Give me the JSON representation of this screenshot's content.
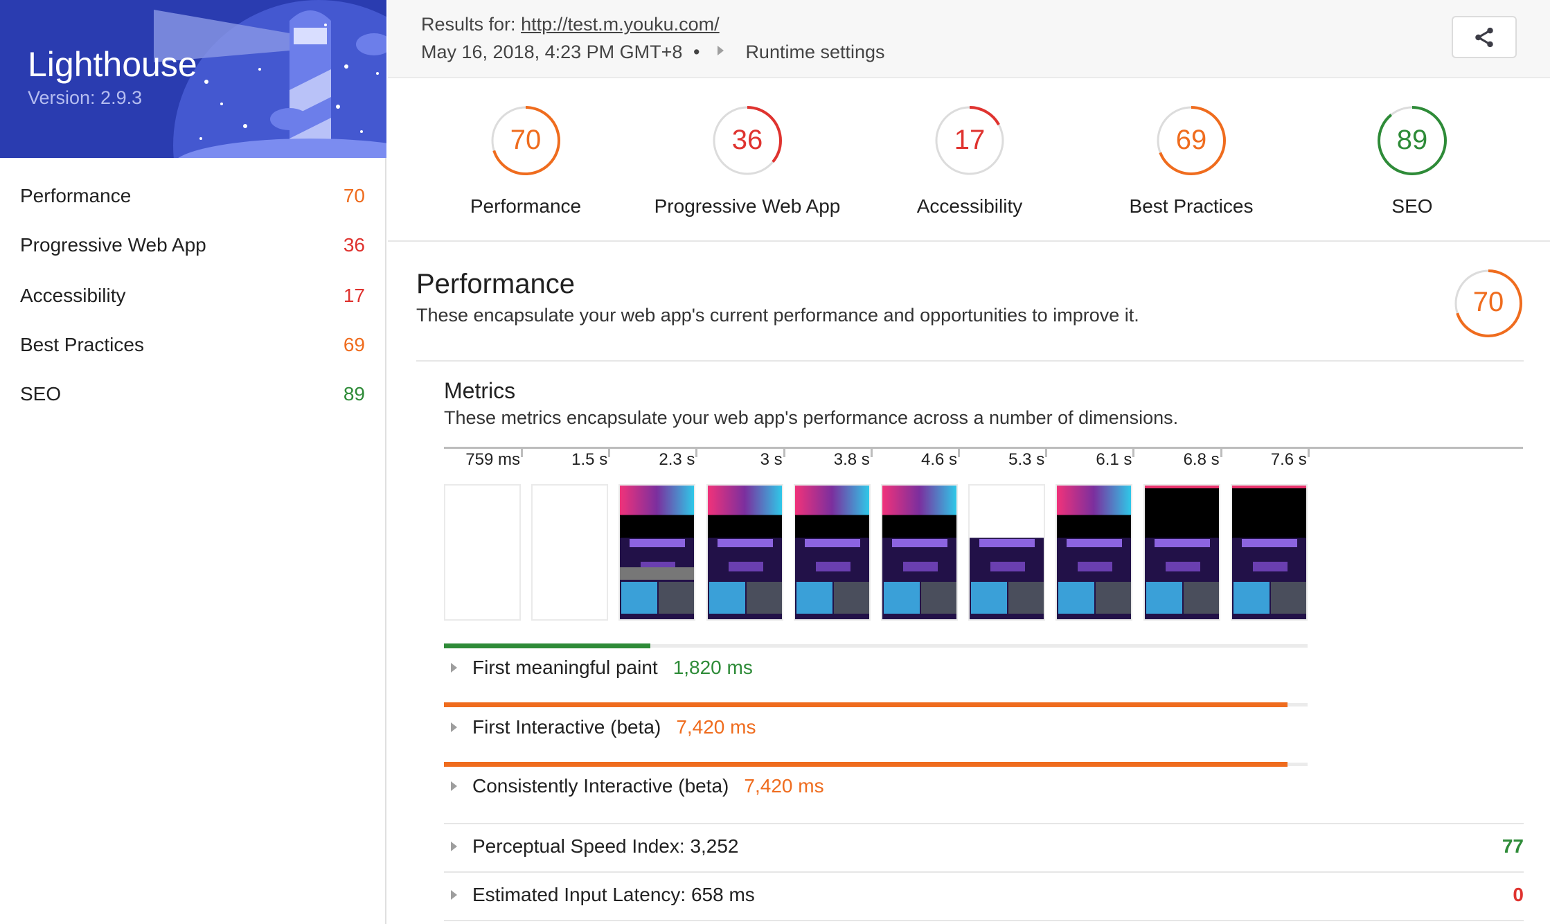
{
  "colors": {
    "pass": "#2e8b38",
    "average": "#ef6c1e",
    "fail": "#df332f",
    "track": "#dcdcdc"
  },
  "sidebar": {
    "title": "Lighthouse",
    "version": "Version: 2.9.3",
    "items": [
      {
        "label": "Performance",
        "score": "70",
        "status": "average"
      },
      {
        "label": "Progressive Web App",
        "score": "36",
        "status": "fail"
      },
      {
        "label": "Accessibility",
        "score": "17",
        "status": "fail"
      },
      {
        "label": "Best Practices",
        "score": "69",
        "status": "average"
      },
      {
        "label": "SEO",
        "score": "89",
        "status": "pass"
      }
    ]
  },
  "header": {
    "results_for": "Results for:",
    "url": "http://test.m.youku.com/",
    "timestamp": "May 16, 2018, 4:23 PM GMT+8",
    "bullet": "•",
    "runtime_settings": "Runtime settings",
    "share_icon": "share-icon"
  },
  "gauges": [
    {
      "label": "Performance",
      "score": 70,
      "status": "average"
    },
    {
      "label": "Progressive Web App",
      "score": 36,
      "status": "fail"
    },
    {
      "label": "Accessibility",
      "score": 17,
      "status": "fail"
    },
    {
      "label": "Best Practices",
      "score": 69,
      "status": "average"
    },
    {
      "label": "SEO",
      "score": 89,
      "status": "pass"
    }
  ],
  "performance": {
    "title": "Performance",
    "description": "These encapsulate your web app's current performance and opportunities to improve it.",
    "score": 70,
    "status": "average",
    "metrics": {
      "title": "Metrics",
      "description": "These metrics encapsulate your web app's performance across a number of dimensions.",
      "filmstrip": [
        "759 ms",
        "1.5 s",
        "2.3 s",
        "3 s",
        "3.8 s",
        "4.6 s",
        "5.3 s",
        "6.1 s",
        "6.8 s",
        "7.6 s"
      ],
      "timed": [
        {
          "label": "First meaningful paint",
          "value": "1,820 ms",
          "status": "pass",
          "fraction": 0.239
        },
        {
          "label": "First Interactive (beta)",
          "value": "7,420 ms",
          "status": "average",
          "fraction": 0.977
        },
        {
          "label": "Consistently Interactive (beta)",
          "value": "7,420 ms",
          "status": "average",
          "fraction": 0.977
        }
      ],
      "scored": [
        {
          "label": "Perceptual Speed Index: 3,252",
          "score": "77",
          "status": "pass"
        },
        {
          "label": "Estimated Input Latency: 658 ms",
          "score": "0",
          "status": "fail"
        }
      ]
    }
  }
}
